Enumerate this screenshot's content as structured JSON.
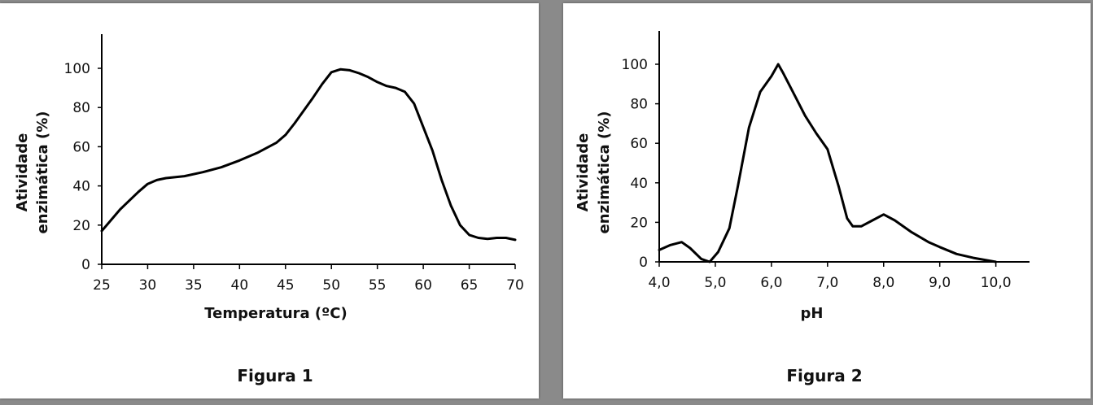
{
  "colors": {
    "panel_bg": "#ffffff",
    "page_bg": "#8a8a8a",
    "line": "#000000"
  },
  "chart_data": [
    {
      "type": "line",
      "caption": "Figura 1",
      "xlabel": "Temperatura (ºC)",
      "ylabel_line1": "Atividade",
      "ylabel_line2": "enzimática (%)",
      "xlim": [
        25,
        70
      ],
      "ylim": [
        0,
        115
      ],
      "xticks": [
        25,
        30,
        35,
        40,
        45,
        50,
        55,
        60,
        65,
        70
      ],
      "xtick_labels": [
        "25",
        "30",
        "35",
        "40",
        "45",
        "50",
        "55",
        "60",
        "65",
        "70"
      ],
      "yticks": [
        0,
        20,
        40,
        60,
        80,
        100
      ],
      "ytick_labels": [
        "0",
        "20",
        "40",
        "60",
        "80",
        "100"
      ],
      "grid": false,
      "series": [
        {
          "x": [
            25,
            27,
            29,
            30,
            31,
            32,
            34,
            36,
            38,
            40,
            42,
            44,
            45,
            46,
            48,
            49,
            50,
            51,
            52,
            53,
            54,
            55,
            56,
            57,
            58,
            59,
            60,
            61,
            62,
            63,
            64,
            65,
            66,
            67,
            68,
            69,
            70
          ],
          "y": [
            17,
            28,
            37,
            41,
            43,
            44,
            45,
            47,
            49.5,
            53,
            57,
            62,
            66,
            72,
            85,
            92,
            98,
            99.5,
            99,
            97.5,
            95.5,
            93,
            91,
            90,
            88,
            82,
            70,
            58,
            43,
            30,
            20,
            15,
            13.5,
            13,
            13.5,
            13.5,
            12.5
          ]
        }
      ]
    },
    {
      "type": "line",
      "caption": "Figura 2",
      "xlabel": "pH",
      "ylabel_line1": "Atividade",
      "ylabel_line2": "enzimática (%)",
      "xlim": [
        4.0,
        10.6
      ],
      "ylim": [
        0,
        115
      ],
      "xticks": [
        4,
        5,
        6,
        7,
        8,
        9,
        10
      ],
      "xtick_labels": [
        "4,0",
        "5,0",
        "6,0",
        "7,0",
        "8,0",
        "9,0",
        "10,0"
      ],
      "yticks": [
        0,
        20,
        40,
        60,
        80,
        100
      ],
      "ytick_labels": [
        "0",
        "20",
        "40",
        "60",
        "80",
        "100"
      ],
      "grid": false,
      "series": [
        {
          "x": [
            4.0,
            4.2,
            4.4,
            4.55,
            4.75,
            4.9,
            5.05,
            5.25,
            5.4,
            5.6,
            5.8,
            6.0,
            6.12,
            6.2,
            6.4,
            6.6,
            6.8,
            7.0,
            7.2,
            7.35,
            7.45,
            7.6,
            7.8,
            8.0,
            8.2,
            8.5,
            8.8,
            9.0,
            9.3,
            9.6,
            10.0
          ],
          "y": [
            6,
            8.5,
            10,
            7,
            1.5,
            0,
            5,
            17,
            38,
            68,
            86,
            94,
            100,
            96,
            85,
            74,
            65,
            57,
            38,
            22,
            18,
            18,
            21,
            24,
            21,
            15,
            10,
            7.5,
            4,
            2,
            0
          ]
        }
      ]
    }
  ]
}
